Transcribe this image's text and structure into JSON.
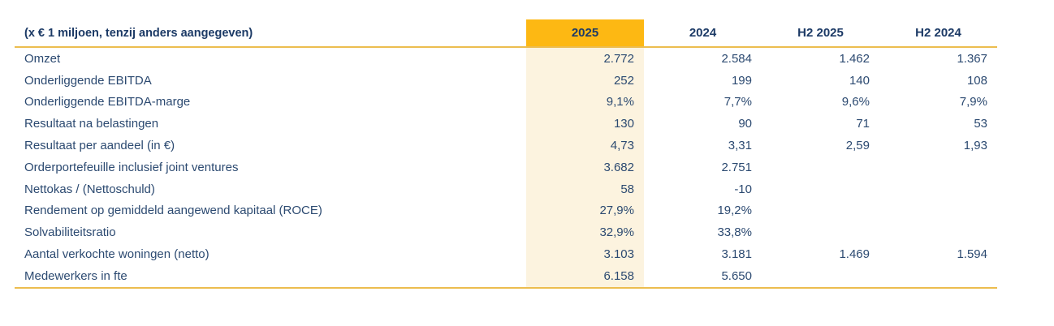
{
  "table": {
    "unit_note": "(x € 1 miljoen, tenzij anders aangegeven)",
    "columns": [
      "2025",
      "2024",
      "H2 2025",
      "H2 2024"
    ],
    "highlight_column": "2025",
    "colors": {
      "text_navy": "#2C4A71",
      "header_navy": "#1C3A66",
      "highlight_orange": "#FDB813",
      "highlight_column_bg": "#FCF3DF",
      "rule_gold": "#ECBD4F",
      "page_background": "#FFFFFF"
    },
    "rows": [
      {
        "label": "Omzet",
        "values": [
          "2.772",
          "2.584",
          "1.462",
          "1.367"
        ]
      },
      {
        "label": "Onderliggende EBITDA",
        "values": [
          "252",
          "199",
          "140",
          "108"
        ]
      },
      {
        "label": "Onderliggende EBITDA-marge",
        "values": [
          "9,1%",
          "7,7%",
          "9,6%",
          "7,9%"
        ]
      },
      {
        "label": "Resultaat na belastingen",
        "values": [
          "130",
          "90",
          "71",
          "53"
        ]
      },
      {
        "label": "Resultaat per aandeel (in €)",
        "values": [
          "4,73",
          "3,31",
          "2,59",
          "1,93"
        ]
      },
      {
        "label": "Orderportefeuille inclusief joint ventures",
        "values": [
          "3.682",
          "2.751",
          "",
          ""
        ]
      },
      {
        "label": "Nettokas / (Nettoschuld)",
        "values": [
          "58",
          "-10",
          "",
          ""
        ]
      },
      {
        "label": "Rendement op gemiddeld aangewend kapitaal (ROCE)",
        "values": [
          "27,9%",
          "19,2%",
          "",
          ""
        ]
      },
      {
        "label": "Solvabiliteitsratio",
        "values": [
          "32,9%",
          "33,8%",
          "",
          ""
        ]
      },
      {
        "label": "Aantal verkochte woningen (netto)",
        "values": [
          "3.103",
          "3.181",
          "1.469",
          "1.594"
        ]
      },
      {
        "label": "Medewerkers in fte",
        "values": [
          "6.158",
          "5.650",
          "",
          ""
        ]
      }
    ]
  }
}
